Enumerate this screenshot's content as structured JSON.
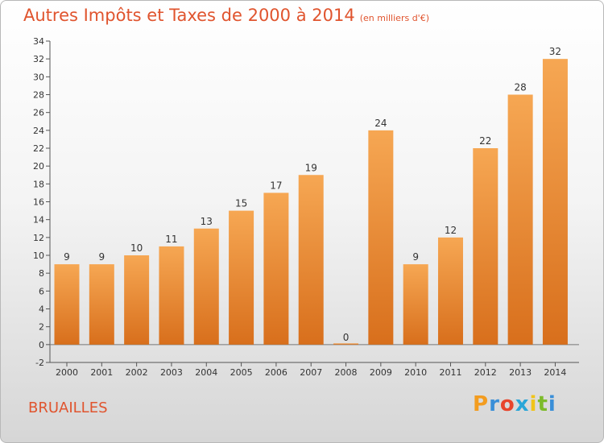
{
  "header": {
    "title": "Autres Impôts et Taxes de 2000 à 2014",
    "subtitle": "(en milliers d'€)"
  },
  "footer": {
    "town": "BRUAILLES",
    "brand_letters": [
      "P",
      "r",
      "o",
      "x",
      "i",
      "t",
      "i"
    ],
    "brand_colors": [
      "#f39c1f",
      "#3a8fd8",
      "#e8452c",
      "#2aa6d8",
      "#f0c419",
      "#7dbb2a",
      "#3a8fd8"
    ]
  },
  "colors": {
    "bar_top": "#f6a753",
    "bar_bottom": "#d86f1c",
    "title": "#e0542e"
  },
  "chart_data": {
    "type": "bar",
    "title": "Autres Impôts et Taxes de 2000 à 2014",
    "subtitle": "(en milliers d'€)",
    "categories": [
      "2000",
      "2001",
      "2002",
      "2003",
      "2004",
      "2005",
      "2006",
      "2007",
      "2008",
      "2009",
      "2010",
      "2011",
      "2012",
      "2013",
      "2014"
    ],
    "values": [
      9,
      9,
      10,
      11,
      13,
      15,
      17,
      19,
      0,
      24,
      9,
      12,
      22,
      28,
      32
    ],
    "xlabel": "",
    "ylabel": "",
    "ylim": [
      -2,
      34
    ],
    "yticks": [
      -2,
      0,
      2,
      4,
      6,
      8,
      10,
      12,
      14,
      16,
      18,
      20,
      22,
      24,
      26,
      28,
      30,
      32,
      34
    ],
    "grid": false,
    "data_labels": true
  }
}
